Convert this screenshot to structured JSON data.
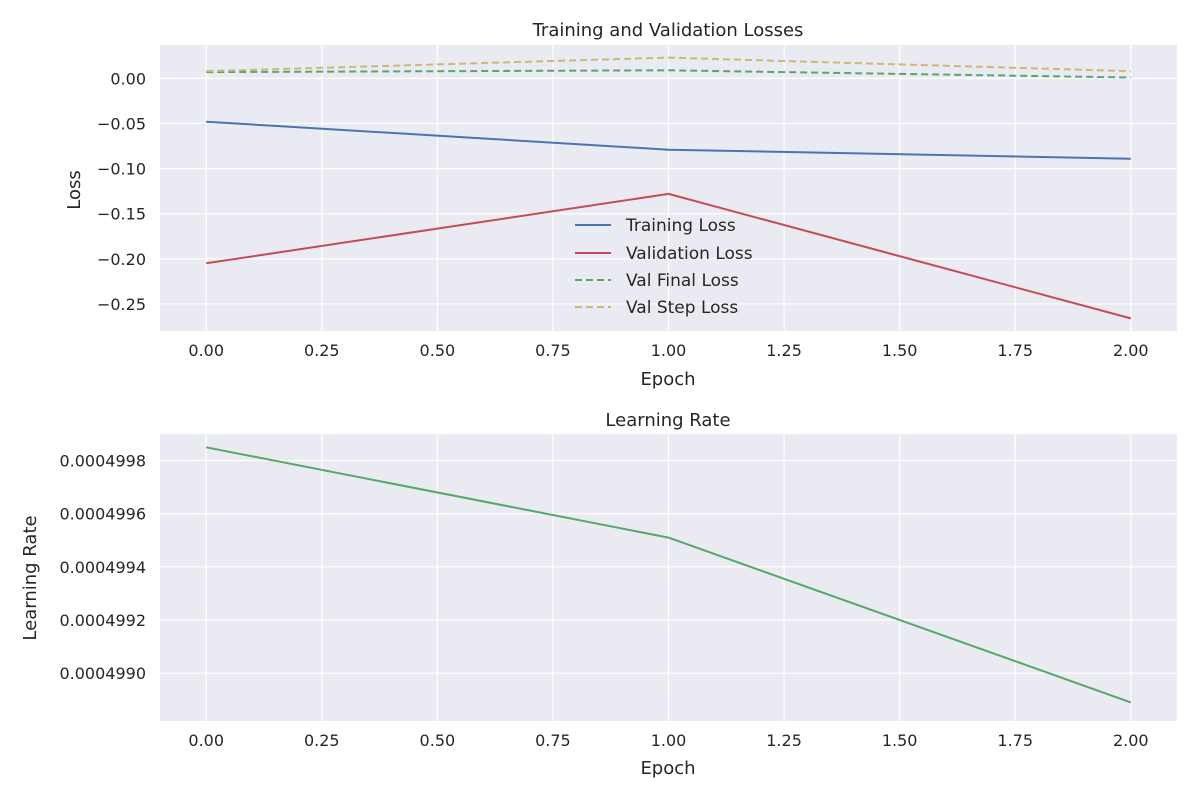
{
  "colors": {
    "plot_bg": "#eaeaf2",
    "grid": "#ffffff",
    "text": "#262626"
  },
  "chart_data": [
    {
      "type": "line",
      "title": "Training and Validation Losses",
      "xlabel": "Epoch",
      "ylabel": "Loss",
      "xlim": [
        -0.1,
        2.1
      ],
      "ylim": [
        -0.28,
        0.037
      ],
      "xticks": [
        0.0,
        0.25,
        0.5,
        0.75,
        1.0,
        1.25,
        1.5,
        1.75,
        2.0
      ],
      "xtick_labels": [
        "0.00",
        "0.25",
        "0.50",
        "0.75",
        "1.00",
        "1.25",
        "1.50",
        "1.75",
        "2.00"
      ],
      "yticks": [
        -0.25,
        -0.2,
        -0.15,
        -0.1,
        -0.05,
        0.0
      ],
      "ytick_labels": [
        "−0.25",
        "−0.20",
        "−0.15",
        "−0.10",
        "−0.05",
        "0.00"
      ],
      "grid": true,
      "legend_position": "center-bottom",
      "x": [
        0,
        1,
        2
      ],
      "series": [
        {
          "name": "Training Loss",
          "values": [
            -0.048,
            -0.079,
            -0.089
          ],
          "color": "#4c72b0",
          "style": "solid"
        },
        {
          "name": "Validation Loss",
          "values": [
            -0.205,
            -0.128,
            -0.266
          ],
          "color": "#c44e52",
          "style": "solid"
        },
        {
          "name": "Val Final Loss",
          "values": [
            0.007,
            0.009,
            0.001
          ],
          "color": "#55a868",
          "style": "dashed"
        },
        {
          "name": "Val Step Loss",
          "values": [
            0.008,
            0.023,
            0.008
          ],
          "color": "#ccb974",
          "style": "dashed"
        }
      ]
    },
    {
      "type": "line",
      "title": "Learning Rate",
      "xlabel": "Epoch",
      "ylabel": "Learning Rate",
      "xlim": [
        -0.1,
        2.1
      ],
      "ylim": [
        0.00049882,
        0.0004999
      ],
      "xticks": [
        0.0,
        0.25,
        0.5,
        0.75,
        1.0,
        1.25,
        1.5,
        1.75,
        2.0
      ],
      "xtick_labels": [
        "0.00",
        "0.25",
        "0.50",
        "0.75",
        "1.00",
        "1.25",
        "1.50",
        "1.75",
        "2.00"
      ],
      "yticks": [
        0.000499,
        0.0004992,
        0.0004994,
        0.0004996,
        0.0004998
      ],
      "ytick_labels": [
        "0.0004990",
        "0.0004992",
        "0.0004994",
        "0.0004996",
        "0.0004998"
      ],
      "grid": true,
      "x": [
        0,
        1,
        2
      ],
      "series": [
        {
          "values": [
            0.00049985,
            0.00049951,
            0.00049889
          ],
          "color": "#55a868",
          "style": "solid"
        }
      ]
    }
  ]
}
